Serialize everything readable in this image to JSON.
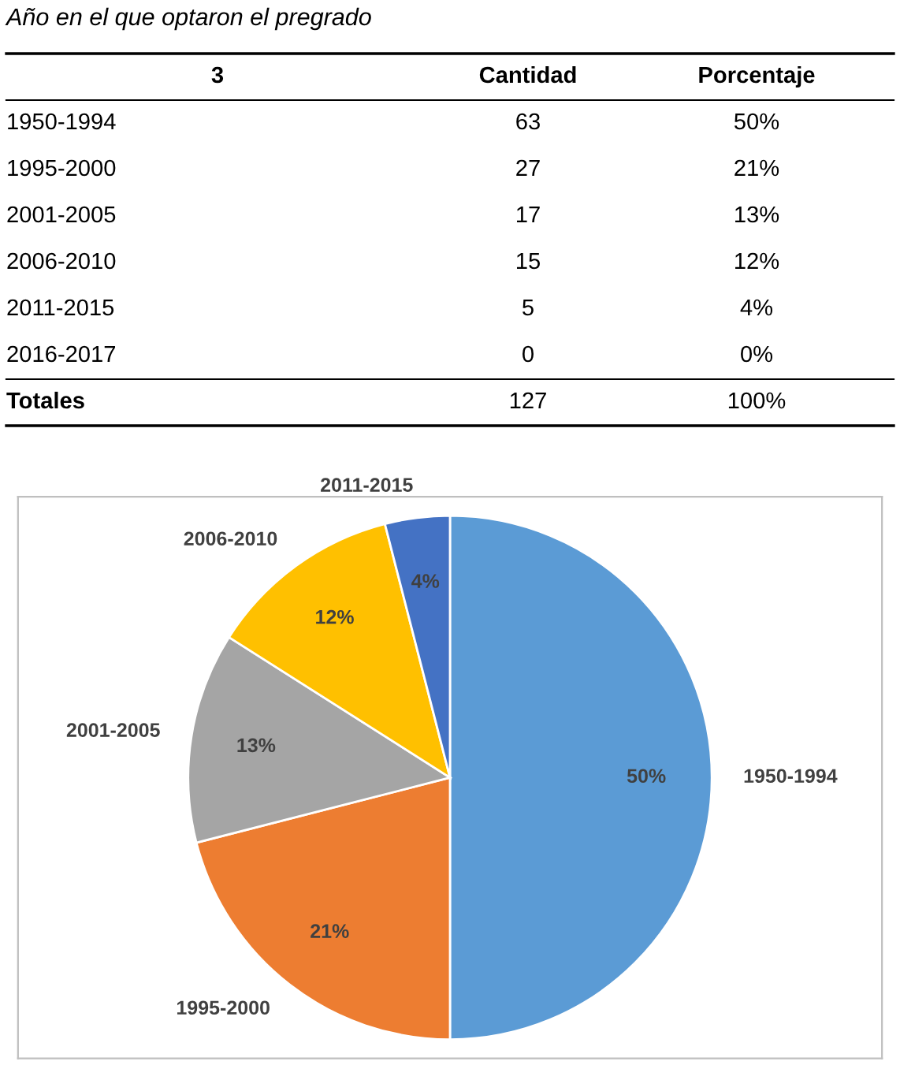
{
  "chart_data": [
    {
      "type": "other",
      "title": "Año en el que optaron el pregrado",
      "annotations": [
        "3",
        "Cantidad",
        "Porcentaje",
        "1950-1994",
        "63",
        "50%",
        "1995-2000",
        "27",
        "21%",
        "2001-2005",
        "17",
        "13%",
        "2006-2010",
        "15",
        "12%",
        "2011-2015",
        "5",
        "4%",
        "2016-2017",
        "0",
        "0%",
        "Totales",
        "127",
        "100%"
      ]
    },
    {
      "type": "pie",
      "categories": [
        "1950-1994",
        "1995-2000",
        "2001-2005",
        "2006-2010",
        "2011-2015"
      ],
      "values": [
        50,
        21,
        13,
        12,
        4
      ],
      "colors": [
        "#5b9bd5",
        "#ed7d31",
        "#a5a5a5",
        "#ffc000",
        "#4472c4"
      ],
      "value_labels": [
        "50%",
        "21%",
        "13%",
        "12%",
        "4%"
      ]
    }
  ]
}
